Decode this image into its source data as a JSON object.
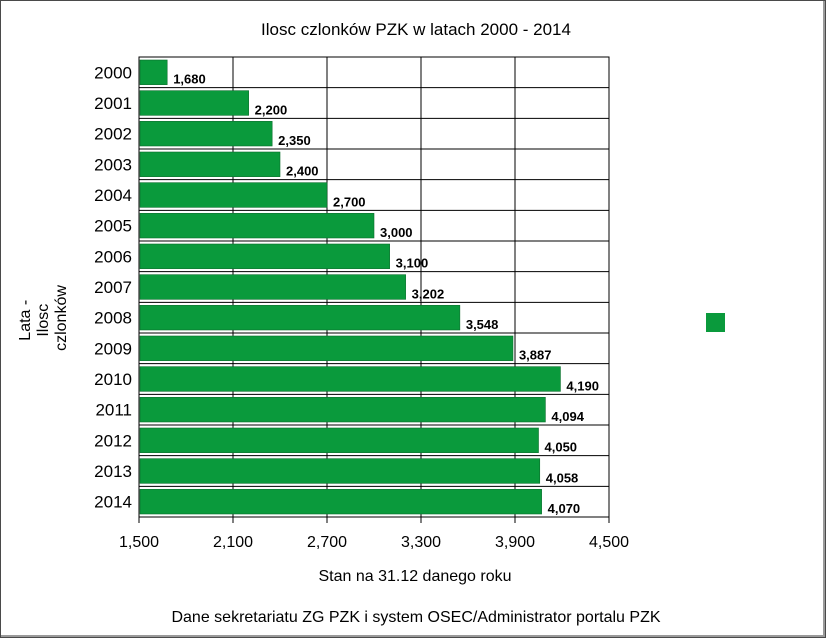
{
  "chart_data": {
    "type": "bar",
    "orientation": "horizontal",
    "title": "Ilosc czlonków PZK w latach 2000 - 2014",
    "xlabel": "Stan na 31.12 danego roku",
    "ylabel_lines": [
      "Lata -",
      "Ilosc",
      "czlonków"
    ],
    "categories": [
      "2000",
      "2001",
      "2002",
      "2003",
      "2004",
      "2005",
      "2006",
      "2007",
      "2008",
      "2009",
      "2010",
      "2011",
      "2012",
      "2013",
      "2014"
    ],
    "values": [
      1680,
      2200,
      2350,
      2400,
      2700,
      3000,
      3100,
      3202,
      3548,
      3887,
      4190,
      4094,
      4050,
      4058,
      4070
    ],
    "value_labels": [
      "1,680",
      "2,200",
      "2,350",
      "2,400",
      "2,700",
      "3,000",
      "3,100",
      "3,202",
      "3,548",
      "3,887",
      "4,190",
      "4,094",
      "4,050",
      "4,058",
      "4,070"
    ],
    "xlim": [
      1500,
      4500
    ],
    "x_ticks": [
      1500,
      2100,
      2700,
      3300,
      3900,
      4500
    ],
    "x_tick_labels": [
      "1,500",
      "2,100",
      "2,700",
      "3,300",
      "3,900",
      "4,500"
    ],
    "grid": true,
    "bar_color": "#0a9a3c",
    "legend": {
      "placement": "right",
      "swatch_color": "#0a9a3c"
    },
    "footer": "Dane sekretariatu ZG PZK i system OSEC/Administrator portalu PZK"
  }
}
